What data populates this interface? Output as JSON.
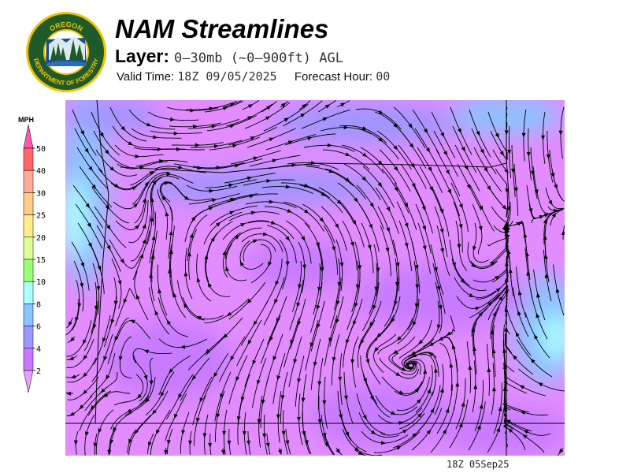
{
  "header": {
    "title": "NAM Streamlines",
    "layer_label": "Layer:",
    "layer_value": "0–30mb (~0–900ft) AGL",
    "valid_label": "Valid Time:",
    "valid_value": "18Z 09/05/2025",
    "forecast_label": "Forecast Hour:",
    "forecast_value": "00"
  },
  "logo": {
    "top_text": "OREGON",
    "bottom_text": "DEPARTMENT OF FORESTRY",
    "colors": {
      "ring": "#f2c200",
      "field": "#1f5a2a",
      "water": "#1a4f8a"
    }
  },
  "legend": {
    "unit": "MPH",
    "ticks": [
      "50",
      "40",
      "30",
      "25",
      "20",
      "15",
      "10",
      "8",
      "6",
      "4",
      "2"
    ],
    "colors": {
      "above_50": "#ff55b0",
      "40-50": "#ff6666",
      "30-40": "#ffaa99",
      "25-30": "#ffcc88",
      "20-25": "#ffee88",
      "15-20": "#ddff99",
      "10-15": "#99ff77",
      "8-10": "#aaffff",
      "6-8": "#88c4ff",
      "4-6": "#9999ff",
      "2-4": "#cc77ff",
      "below_2": "#e8a0ff"
    }
  },
  "map": {
    "field": "wind speed streamlines",
    "dominant_colors": [
      "#e28cff",
      "#c77bff",
      "#9f95ff",
      "#8cc2ff",
      "#aaffff"
    ]
  },
  "footer": {
    "timestamp": "18Z 05Sep25"
  }
}
